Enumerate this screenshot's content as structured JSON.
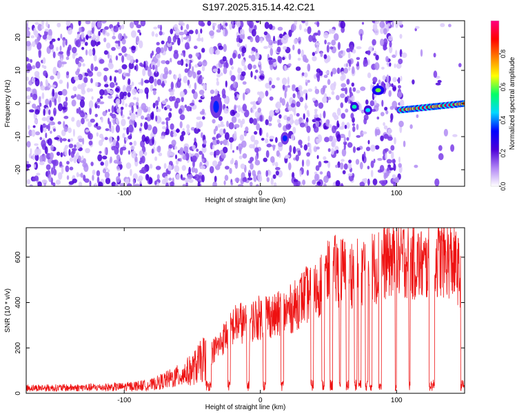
{
  "title": "S197.2025.315.14.42.C21",
  "chart_data": [
    {
      "type": "heatmap",
      "xlabel": "Height of straight line (km)",
      "ylabel": "Frequency (Hz)",
      "xlim": [
        -172,
        150
      ],
      "ylim": [
        -25,
        25
      ],
      "x_ticks": [
        -100,
        0,
        100
      ],
      "y_ticks": [
        -20,
        -10,
        0,
        10,
        20
      ],
      "colorbar": {
        "label": "Normalized spectral amplitude",
        "range": [
          0,
          1
        ],
        "ticks": [
          "0.0",
          "0.2",
          "0.4",
          "0.6",
          "0.8"
        ],
        "colormap": [
          "#ffffff",
          "#b185f5",
          "#4b00d8",
          "#0000ff",
          "#00d8ff",
          "#00ff66",
          "#ffff00",
          "#ff8000",
          "#ff0000",
          "#ff0080"
        ]
      },
      "signal_features": [
        {
          "x_range": [
            -36,
            -29
          ],
          "freq_range": [
            -4,
            2
          ],
          "peak": 0.35
        },
        {
          "x": 18,
          "freq_range": [
            -12,
            -9
          ],
          "peak": 0.35
        },
        {
          "x": 69,
          "freq": -1,
          "peak": 0.5
        },
        {
          "x": 79,
          "freq": -2,
          "peak": 0.45
        },
        {
          "x_range": [
            83,
            90
          ],
          "freq": 4,
          "peak": 0.6
        },
        {
          "x_range": [
            102,
            150
          ],
          "freq_start": -2,
          "freq_end": 0,
          "peak": 0.9
        }
      ]
    },
    {
      "type": "line",
      "xlabel": "Height of straight line (km)",
      "ylabel": "SNR (10 * v/v)",
      "xlim": [
        -172,
        150
      ],
      "ylim": [
        0,
        730
      ],
      "x_ticks": [
        -100,
        0,
        100
      ],
      "y_ticks": [
        0,
        200,
        400,
        600
      ],
      "color": "#ee1111",
      "x": [
        -172,
        -150,
        -120,
        -100,
        -80,
        -70,
        -60,
        -50,
        -45,
        -40,
        -35,
        -30,
        -25,
        -20,
        -15,
        -10,
        -5,
        0,
        5,
        10,
        15,
        20,
        25,
        30,
        35,
        40,
        45,
        50,
        55,
        60,
        65,
        70,
        75,
        80,
        85,
        90,
        95,
        100,
        105,
        110,
        115,
        120,
        125,
        130,
        135,
        140,
        145,
        150
      ],
      "y": [
        25,
        25,
        27,
        30,
        40,
        60,
        80,
        110,
        140,
        170,
        200,
        230,
        280,
        320,
        340,
        320,
        350,
        360,
        380,
        360,
        380,
        390,
        410,
        450,
        470,
        480,
        530,
        560,
        580,
        580,
        560,
        590,
        590,
        600,
        600,
        620,
        640,
        620,
        640,
        630,
        620,
        600,
        620,
        640,
        640,
        630,
        590,
        400
      ],
      "dropout_bands": [
        [
          -40,
          -36
        ],
        [
          -24,
          -22
        ],
        [
          -10,
          -8
        ],
        [
          2,
          4
        ],
        [
          15,
          17
        ],
        [
          37,
          39
        ],
        [
          45,
          47
        ],
        [
          51,
          53
        ],
        [
          58,
          59
        ],
        [
          63,
          65
        ],
        [
          69,
          71
        ],
        [
          72,
          74
        ],
        [
          77,
          79
        ],
        [
          80,
          82
        ],
        [
          87,
          89
        ],
        [
          99,
          100
        ],
        [
          109,
          110
        ],
        [
          124,
          128
        ],
        [
          147,
          150
        ]
      ]
    }
  ]
}
